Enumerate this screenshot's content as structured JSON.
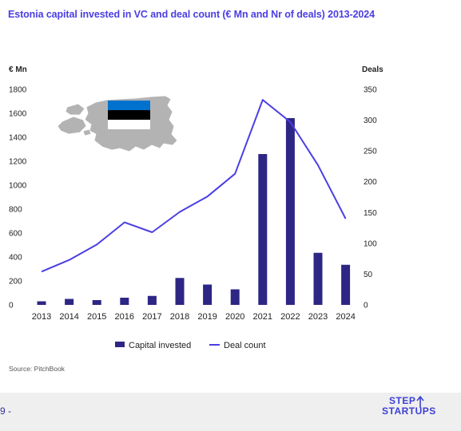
{
  "title": "Estonia capital invested in VC and deal count (€ Mn and Nr of deals) 2013-2024",
  "source": "Source: PitchBook",
  "page_number": "9 -",
  "logo": {
    "line1": "STEP",
    "line2": "STARTUPS",
    "icon": "step-arrow-icon"
  },
  "flag_colors": [
    "#0072ce",
    "#000000",
    "#ffffff"
  ],
  "map_color": "#b3b3b3",
  "chart_data": {
    "type": "bar",
    "title": "Estonia capital invested in VC and deal count (€ Mn and Nr of deals) 2013-2024",
    "categories": [
      "2013",
      "2014",
      "2015",
      "2016",
      "2017",
      "2018",
      "2019",
      "2020",
      "2021",
      "2022",
      "2023",
      "2024"
    ],
    "series": [
      {
        "name": "Capital invested",
        "type": "bar",
        "axis": "left",
        "color": "#2e2684",
        "values": [
          30,
          50,
          40,
          60,
          75,
          225,
          170,
          130,
          1260,
          1560,
          435,
          335
        ]
      },
      {
        "name": "Deal count",
        "type": "line",
        "axis": "right",
        "color": "#4b3ee3",
        "values": [
          54,
          73,
          98,
          134,
          118,
          151,
          176,
          213,
          333,
          297,
          227,
          140
        ]
      }
    ],
    "y_left": {
      "label": "€ Mn",
      "range": [
        0,
        1800
      ],
      "ticks": [
        "1800",
        "1600",
        "1400",
        "1200",
        "1000",
        "800",
        "600",
        "400",
        "200",
        "0"
      ]
    },
    "y_right": {
      "label": "Deals",
      "range": [
        0,
        350
      ],
      "ticks": [
        "350",
        "300",
        "250",
        "200",
        "150",
        "100",
        "50",
        "0"
      ]
    },
    "grid": false,
    "legend": "bottom-center",
    "legend_entries": [
      "Capital invested",
      "Deal count"
    ]
  }
}
